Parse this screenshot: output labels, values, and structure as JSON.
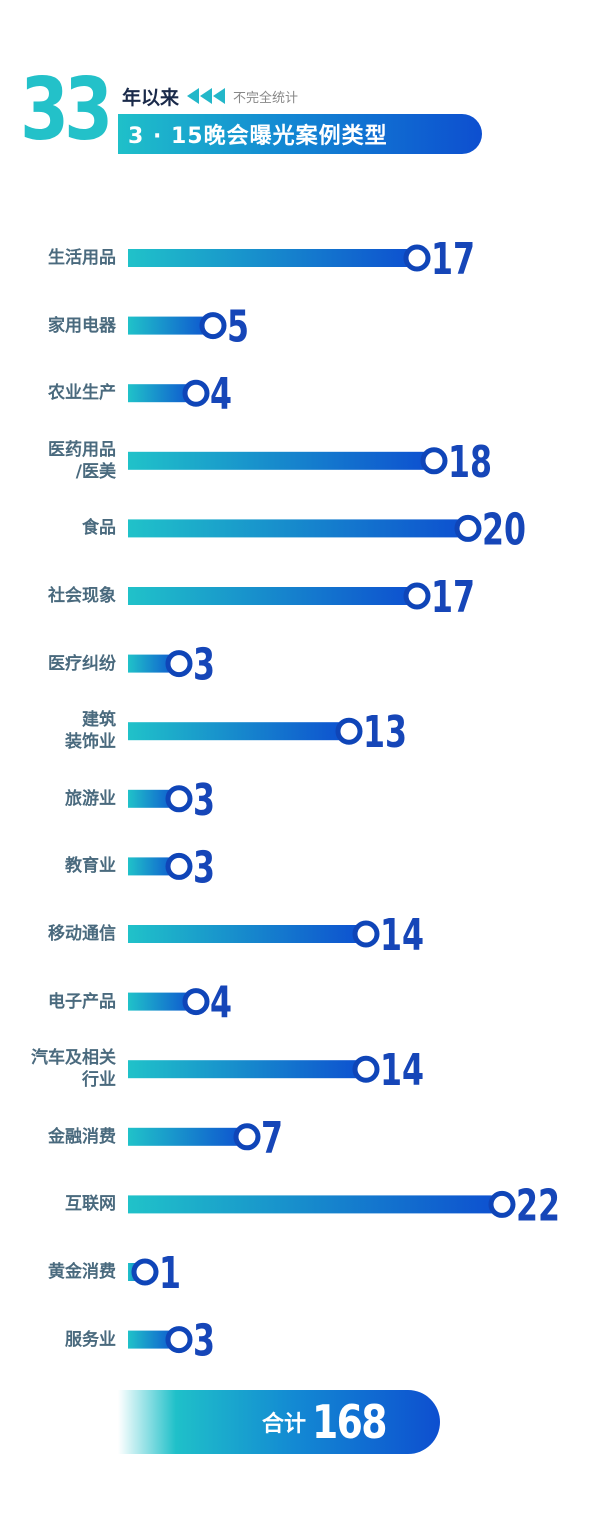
{
  "header": {
    "years": "33",
    "since": "年以来",
    "note": "不完全统计",
    "title": "3 · 15晚会曝光案例类型"
  },
  "colors": {
    "accent": "#23c1c9",
    "bar_start": "#1fc0c9",
    "bar_end": "#0d4fd0",
    "value_text": "#1646b8",
    "label_text": "#4a6a7e"
  },
  "chart_data": {
    "type": "bar",
    "orientation": "horizontal",
    "categories": [
      "生活用品",
      "家用电器",
      "农业生产",
      "医药用品\n/医美",
      "食品",
      "社会现象",
      "医疗纠纷",
      "建筑\n装饰业",
      "旅游业",
      "教育业",
      "移动通信",
      "电子产品",
      "汽车及相关\n行业",
      "金融消费",
      "互联网",
      "黄金消费",
      "服务业"
    ],
    "values": [
      17,
      5,
      4,
      18,
      20,
      17,
      3,
      13,
      3,
      3,
      14,
      4,
      14,
      7,
      22,
      1,
      3
    ],
    "xlim": [
      0,
      22
    ],
    "grid": false
  },
  "total": {
    "label": "合计",
    "value": "168"
  }
}
